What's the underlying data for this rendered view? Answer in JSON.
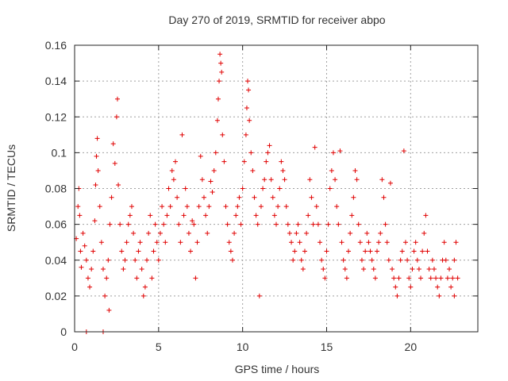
{
  "chart_data": {
    "type": "scatter",
    "title": "Day 270 of 2019, SRMTID for receiver abpo",
    "xlabel": "GPS time / hours",
    "ylabel": "SRMTID / TECUs",
    "xlim": [
      0,
      24
    ],
    "ylim": [
      0,
      0.16
    ],
    "x_ticks": [
      0,
      5,
      10,
      15,
      20
    ],
    "x_tick_labels": [
      "0",
      "5",
      "10",
      "15",
      "20"
    ],
    "y_ticks": [
      0,
      0.02,
      0.04,
      0.06,
      0.08,
      0.1,
      0.12,
      0.14,
      0.16
    ],
    "y_tick_labels": [
      "0",
      "0.02",
      "0.04",
      "0.06",
      "0.08",
      "0.1",
      "0.12",
      "0.14",
      "0.16"
    ],
    "grid": true,
    "marker": "plus",
    "color": "#e00000",
    "series": [
      {
        "name": "SRMTID",
        "points": [
          [
            0.1,
            0.052
          ],
          [
            0.2,
            0.07
          ],
          [
            0.25,
            0.08
          ],
          [
            0.3,
            0.065
          ],
          [
            0.35,
            0.045
          ],
          [
            0.4,
            0.036
          ],
          [
            0.5,
            0.055
          ],
          [
            0.6,
            0.048
          ],
          [
            0.7,
            0.04
          ],
          [
            0.8,
            0.03
          ],
          [
            0.9,
            0.025
          ],
          [
            1.0,
            0.035
          ],
          [
            1.1,
            0.045
          ],
          [
            1.2,
            0.062
          ],
          [
            1.25,
            0.082
          ],
          [
            1.3,
            0.098
          ],
          [
            1.35,
            0.108
          ],
          [
            1.4,
            0.09
          ],
          [
            1.5,
            0.07
          ],
          [
            1.6,
            0.05
          ],
          [
            1.7,
            0.035
          ],
          [
            1.8,
            0.02
          ],
          [
            1.9,
            0.03
          ],
          [
            2.0,
            0.04
          ],
          [
            2.05,
            0.012
          ],
          [
            2.1,
            0.06
          ],
          [
            2.2,
            0.075
          ],
          [
            2.3,
            0.105
          ],
          [
            2.4,
            0.094
          ],
          [
            2.5,
            0.12
          ],
          [
            2.55,
            0.13
          ],
          [
            2.6,
            0.082
          ],
          [
            2.7,
            0.06
          ],
          [
            2.8,
            0.045
          ],
          [
            2.9,
            0.035
          ],
          [
            3.0,
            0.04
          ],
          [
            3.1,
            0.05
          ],
          [
            3.2,
            0.06
          ],
          [
            3.3,
            0.065
          ],
          [
            3.4,
            0.07
          ],
          [
            3.5,
            0.055
          ],
          [
            3.6,
            0.04
          ],
          [
            3.7,
            0.03
          ],
          [
            3.8,
            0.045
          ],
          [
            3.9,
            0.05
          ],
          [
            4.0,
            0.035
          ],
          [
            4.1,
            0.02
          ],
          [
            4.2,
            0.025
          ],
          [
            4.3,
            0.04
          ],
          [
            4.4,
            0.055
          ],
          [
            4.5,
            0.065
          ],
          [
            4.6,
            0.03
          ],
          [
            4.7,
            0.045
          ],
          [
            4.8,
            0.06
          ],
          [
            4.9,
            0.05
          ],
          [
            5.0,
            0.04
          ],
          [
            5.1,
            0.055
          ],
          [
            5.2,
            0.07
          ],
          [
            5.3,
            0.06
          ],
          [
            5.4,
            0.05
          ],
          [
            5.5,
            0.065
          ],
          [
            5.6,
            0.08
          ],
          [
            5.7,
            0.07
          ],
          [
            5.8,
            0.09
          ],
          [
            5.9,
            0.085
          ],
          [
            6.0,
            0.095
          ],
          [
            6.1,
            0.075
          ],
          [
            6.2,
            0.06
          ],
          [
            6.3,
            0.05
          ],
          [
            6.4,
            0.11
          ],
          [
            6.5,
            0.065
          ],
          [
            6.6,
            0.08
          ],
          [
            6.7,
            0.07
          ],
          [
            6.8,
            0.055
          ],
          [
            6.9,
            0.045
          ],
          [
            7.0,
            0.062
          ],
          [
            7.1,
            0.06
          ],
          [
            7.2,
            0.03
          ],
          [
            7.3,
            0.05
          ],
          [
            7.4,
            0.07
          ],
          [
            7.5,
            0.098
          ],
          [
            7.6,
            0.085
          ],
          [
            7.7,
            0.075
          ],
          [
            7.8,
            0.065
          ],
          [
            7.9,
            0.055
          ],
          [
            8.0,
            0.07
          ],
          [
            8.1,
            0.084
          ],
          [
            8.2,
            0.078
          ],
          [
            8.3,
            0.09
          ],
          [
            8.4,
            0.1
          ],
          [
            8.5,
            0.118
          ],
          [
            8.55,
            0.13
          ],
          [
            8.6,
            0.14
          ],
          [
            8.65,
            0.155
          ],
          [
            8.7,
            0.15
          ],
          [
            8.75,
            0.145
          ],
          [
            8.8,
            0.11
          ],
          [
            8.9,
            0.095
          ],
          [
            9.0,
            0.07
          ],
          [
            9.1,
            0.06
          ],
          [
            9.2,
            0.05
          ],
          [
            9.3,
            0.045
          ],
          [
            9.4,
            0.04
          ],
          [
            9.5,
            0.055
          ],
          [
            9.6,
            0.065
          ],
          [
            9.7,
            0.07
          ],
          [
            9.8,
            0.075
          ],
          [
            9.9,
            0.06
          ],
          [
            10.0,
            0.08
          ],
          [
            10.1,
            0.095
          ],
          [
            10.2,
            0.11
          ],
          [
            10.25,
            0.125
          ],
          [
            10.3,
            0.14
          ],
          [
            10.35,
            0.135
          ],
          [
            10.4,
            0.118
          ],
          [
            10.5,
            0.1
          ],
          [
            10.6,
            0.09
          ],
          [
            10.7,
            0.075
          ],
          [
            10.8,
            0.065
          ],
          [
            10.9,
            0.06
          ],
          [
            11.0,
            0.02
          ],
          [
            11.1,
            0.07
          ],
          [
            11.2,
            0.08
          ],
          [
            11.3,
            0.085
          ],
          [
            11.4,
            0.095
          ],
          [
            11.5,
            0.1
          ],
          [
            11.6,
            0.104
          ],
          [
            11.7,
            0.085
          ],
          [
            11.8,
            0.075
          ],
          [
            11.9,
            0.065
          ],
          [
            12.0,
            0.06
          ],
          [
            12.1,
            0.07
          ],
          [
            12.2,
            0.08
          ],
          [
            12.3,
            0.095
          ],
          [
            12.4,
            0.09
          ],
          [
            12.5,
            0.085
          ],
          [
            12.6,
            0.07
          ],
          [
            12.7,
            0.06
          ],
          [
            12.8,
            0.055
          ],
          [
            12.9,
            0.05
          ],
          [
            13.0,
            0.04
          ],
          [
            13.1,
            0.045
          ],
          [
            13.2,
            0.055
          ],
          [
            13.3,
            0.06
          ],
          [
            13.4,
            0.05
          ],
          [
            13.5,
            0.04
          ],
          [
            13.6,
            0.035
          ],
          [
            13.7,
            0.045
          ],
          [
            13.8,
            0.055
          ],
          [
            13.9,
            0.065
          ],
          [
            14.0,
            0.085
          ],
          [
            14.1,
            0.075
          ],
          [
            14.2,
            0.06
          ],
          [
            14.3,
            0.103
          ],
          [
            14.4,
            0.07
          ],
          [
            14.5,
            0.06
          ],
          [
            14.6,
            0.05
          ],
          [
            14.7,
            0.04
          ],
          [
            14.8,
            0.035
          ],
          [
            14.9,
            0.03
          ],
          [
            15.0,
            0.045
          ],
          [
            15.1,
            0.06
          ],
          [
            15.2,
            0.08
          ],
          [
            15.3,
            0.09
          ],
          [
            15.4,
            0.1
          ],
          [
            15.5,
            0.085
          ],
          [
            15.6,
            0.07
          ],
          [
            15.7,
            0.06
          ],
          [
            15.8,
            0.101
          ],
          [
            15.9,
            0.05
          ],
          [
            16.0,
            0.04
          ],
          [
            16.1,
            0.035
          ],
          [
            16.2,
            0.03
          ],
          [
            16.3,
            0.045
          ],
          [
            16.4,
            0.055
          ],
          [
            16.5,
            0.065
          ],
          [
            16.6,
            0.075
          ],
          [
            16.7,
            0.09
          ],
          [
            16.8,
            0.085
          ],
          [
            16.9,
            0.06
          ],
          [
            17.0,
            0.05
          ],
          [
            17.1,
            0.04
          ],
          [
            17.2,
            0.035
          ],
          [
            17.3,
            0.045
          ],
          [
            17.4,
            0.055
          ],
          [
            17.5,
            0.05
          ],
          [
            17.6,
            0.045
          ],
          [
            17.7,
            0.04
          ],
          [
            17.8,
            0.035
          ],
          [
            17.9,
            0.03
          ],
          [
            18.0,
            0.045
          ],
          [
            18.1,
            0.05
          ],
          [
            18.2,
            0.055
          ],
          [
            18.3,
            0.085
          ],
          [
            18.4,
            0.075
          ],
          [
            18.5,
            0.06
          ],
          [
            18.6,
            0.05
          ],
          [
            18.7,
            0.04
          ],
          [
            18.8,
            0.083
          ],
          [
            18.9,
            0.035
          ],
          [
            19.0,
            0.03
          ],
          [
            19.1,
            0.025
          ],
          [
            19.2,
            0.02
          ],
          [
            19.3,
            0.03
          ],
          [
            19.4,
            0.04
          ],
          [
            19.5,
            0.045
          ],
          [
            19.6,
            0.101
          ],
          [
            19.7,
            0.05
          ],
          [
            19.8,
            0.04
          ],
          [
            19.9,
            0.03
          ],
          [
            20.0,
            0.025
          ],
          [
            20.1,
            0.035
          ],
          [
            20.2,
            0.045
          ],
          [
            20.3,
            0.05
          ],
          [
            20.4,
            0.04
          ],
          [
            20.5,
            0.035
          ],
          [
            20.6,
            0.03
          ],
          [
            20.7,
            0.045
          ],
          [
            20.8,
            0.055
          ],
          [
            20.9,
            0.065
          ],
          [
            21.0,
            0.045
          ],
          [
            21.1,
            0.035
          ],
          [
            21.2,
            0.03
          ],
          [
            21.3,
            0.04
          ],
          [
            21.4,
            0.035
          ],
          [
            21.5,
            0.03
          ],
          [
            21.6,
            0.025
          ],
          [
            21.7,
            0.02
          ],
          [
            21.8,
            0.03
          ],
          [
            21.9,
            0.04
          ],
          [
            22.0,
            0.05
          ],
          [
            22.1,
            0.04
          ],
          [
            22.2,
            0.03
          ],
          [
            22.3,
            0.035
          ],
          [
            22.4,
            0.025
          ],
          [
            22.5,
            0.03
          ],
          [
            22.6,
            0.04
          ],
          [
            22.7,
            0.05
          ],
          [
            22.8,
            0.03
          ],
          [
            22.6,
            0.02
          ],
          [
            0.7,
            0.0
          ],
          [
            1.7,
            0.0
          ]
        ]
      }
    ]
  }
}
